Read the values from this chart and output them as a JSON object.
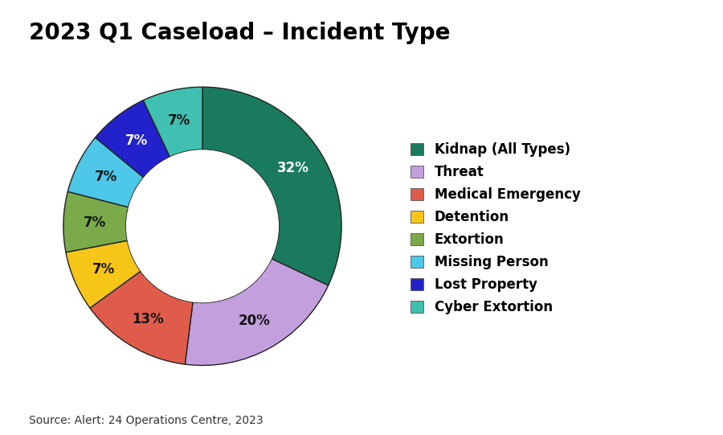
{
  "title": "2023 Q1 Caseload – Incident Type",
  "source_text": "Source: Alert: 24 Operations Centre, 2023",
  "slices": [
    {
      "label": "Kidnap (All Types)",
      "pct": 32,
      "color": "#1a7a5e"
    },
    {
      "label": "Threat",
      "pct": 20,
      "color": "#c49fde"
    },
    {
      "label": "Medical Emergency",
      "pct": 13,
      "color": "#e05c4a"
    },
    {
      "label": "Detention",
      "pct": 7,
      "color": "#f5c518"
    },
    {
      "label": "Extortion",
      "pct": 7,
      "color": "#7aaa4a"
    },
    {
      "label": "Missing Person",
      "pct": 7,
      "color": "#4dc8e8"
    },
    {
      "label": "Lost Property",
      "pct": 7,
      "color": "#2222cc"
    },
    {
      "label": "Cyber Extortion",
      "pct": 7,
      "color": "#40c0b0"
    }
  ],
  "bg_color": "#ffffff",
  "title_fontsize": 20,
  "legend_fontsize": 12,
  "label_fontsize": 12,
  "source_fontsize": 10,
  "wedge_edge_color": "#222222",
  "wedge_edge_width": 1.0,
  "donut_width": 0.45,
  "pct_distance": 0.775
}
